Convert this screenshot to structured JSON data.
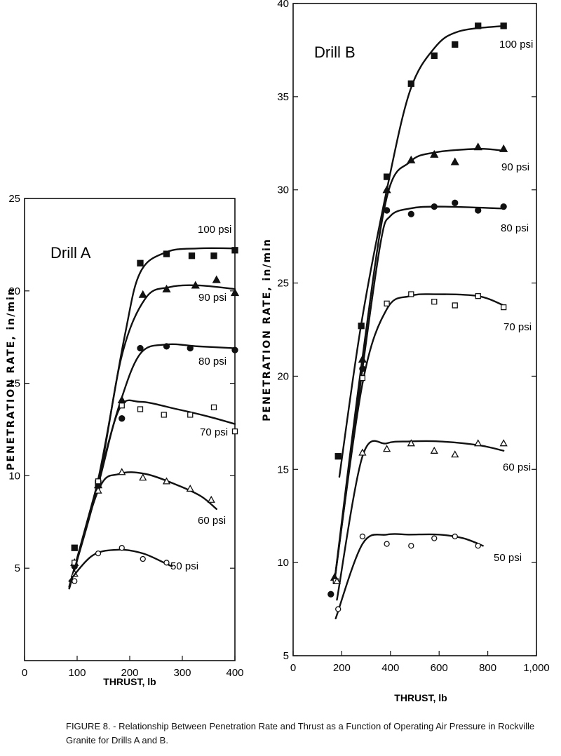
{
  "caption": "FIGURE 8. - Relationship Between Penetration Rate and Thrust as a Function of Operating Air Pressure in Rockville Granite for Drills A and B.",
  "chart_data": [
    {
      "type": "scatter",
      "title": "Drill A",
      "xlabel": "THRUST, lb",
      "ylabel": "PENETRATION RATE, in/min",
      "xlim": [
        0,
        400
      ],
      "ylim": [
        0,
        25
      ],
      "xticks": [
        0,
        100,
        200,
        300,
        400
      ],
      "yticks": [
        5,
        10,
        15,
        20,
        25
      ],
      "series": [
        {
          "name": "100 psi",
          "marker": "filled-square",
          "x": [
            95,
            140,
            220,
            270,
            318,
            360,
            400
          ],
          "y": [
            6.1,
            9.6,
            21.5,
            22.0,
            21.9,
            21.9,
            22.2
          ],
          "fit": [
            [
              85,
              4.0
            ],
            [
              140,
              9.8
            ],
            [
              190,
              17.5
            ],
            [
              220,
              21.0
            ],
            [
              270,
              22.1
            ],
            [
              330,
              22.3
            ],
            [
              400,
              22.3
            ]
          ]
        },
        {
          "name": "90 psi",
          "marker": "filled-triangle",
          "x": [
            95,
            140,
            185,
            225,
            270,
            325,
            365,
            400
          ],
          "y": [
            5.3,
            9.5,
            14.1,
            19.8,
            20.1,
            20.3,
            20.6,
            19.9
          ],
          "fit": [
            [
              85,
              4.0
            ],
            [
              140,
              9.6
            ],
            [
              185,
              16.5
            ],
            [
              230,
              19.6
            ],
            [
              275,
              20.2
            ],
            [
              330,
              20.3
            ],
            [
              400,
              20.1
            ]
          ]
        },
        {
          "name": "80 psi",
          "marker": "filled-circle",
          "x": [
            95,
            140,
            185,
            220,
            270,
            315,
            400
          ],
          "y": [
            5.1,
            9.6,
            13.1,
            16.9,
            17.0,
            16.9,
            16.8
          ],
          "fit": [
            [
              85,
              4.0
            ],
            [
              140,
              9.7
            ],
            [
              180,
              13.8
            ],
            [
              220,
              16.6
            ],
            [
              270,
              17.1
            ],
            [
              330,
              17.0
            ],
            [
              400,
              16.9
            ]
          ]
        },
        {
          "name": "70 psi",
          "marker": "open-square",
          "x": [
            95,
            140,
            185,
            220,
            265,
            315,
            360,
            400
          ],
          "y": [
            5.3,
            9.7,
            13.8,
            13.6,
            13.3,
            13.3,
            13.7,
            12.4
          ],
          "fit": [
            [
              85,
              3.9
            ],
            [
              140,
              9.5
            ],
            [
              180,
              13.6
            ],
            [
              220,
              14.0
            ],
            [
              290,
              13.6
            ],
            [
              350,
              13.2
            ],
            [
              400,
              12.8
            ]
          ]
        },
        {
          "name": "60 psi",
          "marker": "open-triangle",
          "x": [
            95,
            140,
            185,
            225,
            270,
            315,
            355
          ],
          "y": [
            4.7,
            9.2,
            10.2,
            9.9,
            9.7,
            9.3,
            8.7
          ],
          "fit": [
            [
              85,
              3.9
            ],
            [
              140,
              9.2
            ],
            [
              180,
              10.1
            ],
            [
              230,
              10.1
            ],
            [
              290,
              9.5
            ],
            [
              335,
              8.9
            ],
            [
              365,
              8.2
            ]
          ]
        },
        {
          "name": "50 psi",
          "marker": "open-circle",
          "x": [
            95,
            140,
            185,
            225,
            270
          ],
          "y": [
            4.3,
            5.8,
            6.1,
            5.5,
            5.3
          ],
          "fit": [
            [
              85,
              4.3
            ],
            [
              130,
              5.7
            ],
            [
              180,
              6.0
            ],
            [
              225,
              5.8
            ],
            [
              265,
              5.3
            ],
            [
              280,
              5.1
            ]
          ]
        }
      ]
    },
    {
      "type": "scatter",
      "title": "Drill B",
      "xlabel": "THRUST, lb",
      "ylabel": "PENETRATION RATE, in/min",
      "xlim": [
        0,
        1000
      ],
      "ylim": [
        5,
        40
      ],
      "xticks": [
        0,
        200,
        400,
        600,
        800,
        1000
      ],
      "xticklabels": [
        "0",
        "200",
        "400",
        "600",
        "800",
        "1,000"
      ],
      "yticks": [
        5,
        10,
        15,
        20,
        25,
        30,
        35,
        40
      ],
      "series": [
        {
          "name": "100 psi",
          "marker": "filled-square",
          "x": [
            185,
            280,
            385,
            485,
            580,
            665,
            760,
            865
          ],
          "y": [
            15.7,
            22.7,
            30.7,
            35.7,
            37.2,
            37.8,
            38.8,
            38.8
          ],
          "fit": [
            [
              190,
              14.6
            ],
            [
              280,
              22.8
            ],
            [
              385,
              30.0
            ],
            [
              480,
              35.3
            ],
            [
              580,
              37.6
            ],
            [
              680,
              38.5
            ],
            [
              865,
              38.8
            ]
          ]
        },
        {
          "name": "90 psi",
          "marker": "filled-triangle",
          "x": [
            170,
            285,
            385,
            485,
            580,
            665,
            760,
            865
          ],
          "y": [
            9.2,
            20.9,
            30.0,
            31.6,
            31.9,
            31.5,
            32.3,
            32.2
          ],
          "fit": [
            [
              170,
              9.0
            ],
            [
              285,
              21.0
            ],
            [
              385,
              29.6
            ],
            [
              480,
              31.5
            ],
            [
              580,
              32.0
            ],
            [
              760,
              32.2
            ],
            [
              865,
              32.1
            ]
          ]
        },
        {
          "name": "80 psi",
          "marker": "filled-circle",
          "x": [
            155,
            285,
            385,
            485,
            580,
            665,
            760,
            865
          ],
          "y": [
            8.3,
            20.4,
            28.9,
            28.7,
            29.1,
            29.3,
            28.9,
            29.1
          ],
          "fit": [
            [
              170,
              9.0
            ],
            [
              285,
              20.4
            ],
            [
              360,
              27.2
            ],
            [
              400,
              28.6
            ],
            [
              480,
              29.0
            ],
            [
              600,
              29.1
            ],
            [
              865,
              29.0
            ]
          ]
        },
        {
          "name": "70 psi",
          "marker": "open-square",
          "x": [
            175,
            285,
            385,
            485,
            580,
            665,
            760,
            865
          ],
          "y": [
            9.0,
            19.9,
            23.9,
            24.4,
            24.0,
            23.8,
            24.3,
            23.7
          ],
          "fit": [
            [
              170,
              9.0
            ],
            [
              285,
              19.6
            ],
            [
              385,
              23.6
            ],
            [
              480,
              24.3
            ],
            [
              580,
              24.4
            ],
            [
              760,
              24.3
            ],
            [
              865,
              23.8
            ]
          ]
        },
        {
          "name": "60 psi",
          "marker": "open-triangle",
          "x": [
            180,
            285,
            385,
            485,
            580,
            665,
            760,
            865
          ],
          "y": [
            9.0,
            15.9,
            16.1,
            16.4,
            16.0,
            15.8,
            16.4,
            16.4
          ],
          "fit": [
            [
              180,
              8.0
            ],
            [
              285,
              15.7
            ],
            [
              385,
              16.4
            ],
            [
              480,
              16.5
            ],
            [
              600,
              16.5
            ],
            [
              760,
              16.3
            ],
            [
              865,
              16.0
            ]
          ]
        },
        {
          "name": "50 psi",
          "marker": "open-circle",
          "x": [
            185,
            285,
            385,
            485,
            580,
            665,
            760
          ],
          "y": [
            7.5,
            11.4,
            11.0,
            10.9,
            11.3,
            11.4,
            10.9
          ],
          "fit": [
            [
              175,
              7.0
            ],
            [
              285,
              11.0
            ],
            [
              385,
              11.5
            ],
            [
              480,
              11.5
            ],
            [
              600,
              11.5
            ],
            [
              700,
              11.3
            ],
            [
              780,
              10.9
            ]
          ]
        }
      ]
    }
  ]
}
